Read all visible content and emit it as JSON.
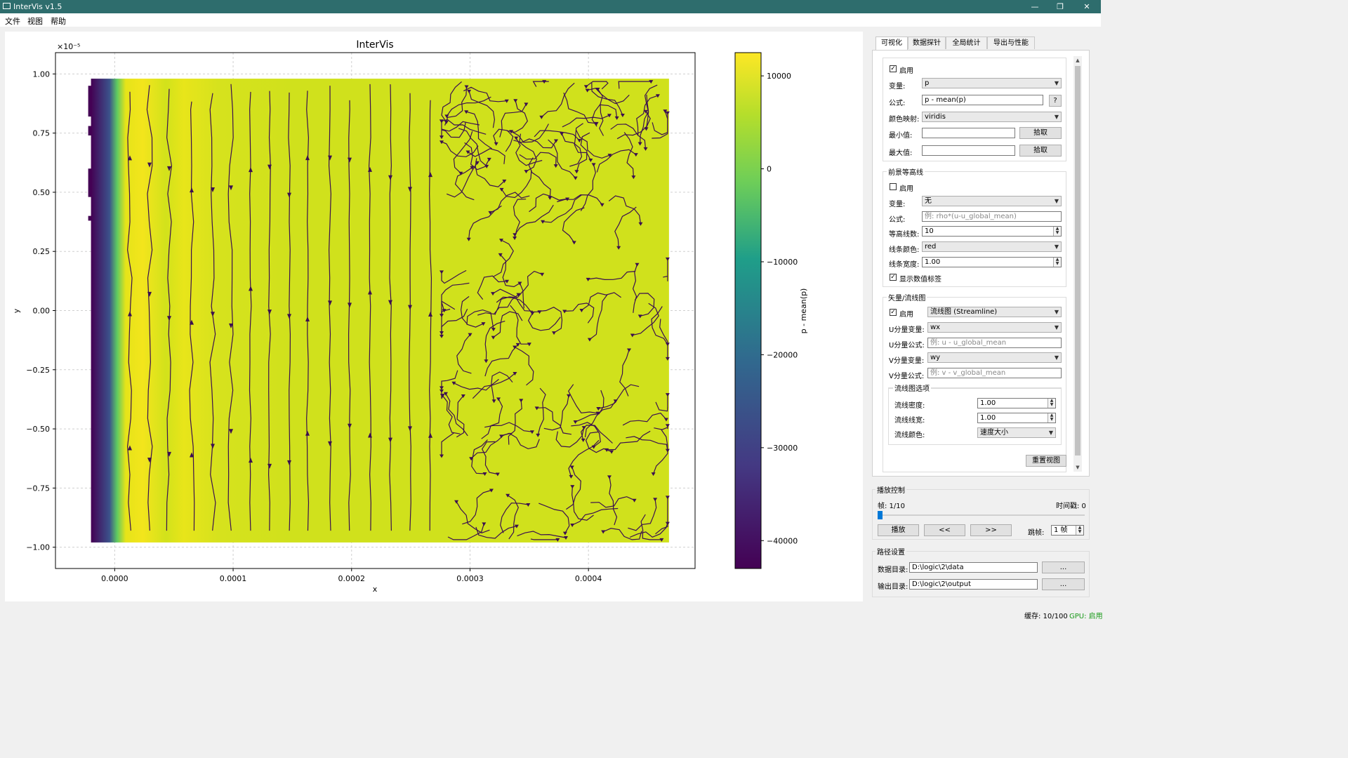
{
  "window": {
    "title": "InterVis v1.5",
    "minimize": "—",
    "restore": "❐",
    "close": "✕"
  },
  "menu": [
    "文件",
    "视图",
    "帮助"
  ],
  "plot": {
    "title": "InterVis",
    "xlabel": "x",
    "ylabel": "y",
    "y_exponent": "×10⁻⁵",
    "x_ticks": [
      "0.0000",
      "0.0001",
      "0.0002",
      "0.0003",
      "0.0004"
    ],
    "y_ticks": [
      "1.00",
      "0.75",
      "0.50",
      "0.25",
      "0.00",
      "−0.25",
      "−0.50",
      "−0.75",
      "−1.00"
    ],
    "colorbar_label": "p - mean(p)",
    "colorbar_ticks": [
      "10000",
      "0",
      "−10000",
      "−20000",
      "−30000",
      "−40000"
    ]
  },
  "chart_data": {
    "type": "heatmap",
    "title": "InterVis",
    "xlabel": "x",
    "ylabel": "y",
    "y_scale_factor": "1e-5",
    "xlim": [
      -5e-05,
      0.00049
    ],
    "ylim": [
      -1.09,
      1.09
    ],
    "x_ticks": [
      0.0,
      0.0001,
      0.0002,
      0.0003,
      0.0004
    ],
    "y_ticks": [
      1.0,
      0.75,
      0.5,
      0.25,
      0.0,
      -0.25,
      -0.5,
      -0.75,
      -1.0
    ],
    "colormap": "viridis",
    "colorbar": {
      "label": "p - mean(p)",
      "ticks": [
        10000,
        0,
        -10000,
        -20000,
        -30000,
        -40000
      ],
      "range": [
        -43000,
        12500
      ]
    },
    "field_extent": {
      "x": [
        -2e-05,
        0.000468
      ],
      "y": [
        -0.98,
        0.98
      ]
    },
    "low_region_x": [
      -2e-05,
      0.0
    ],
    "streamlines": true,
    "grid": true
  },
  "tabs": {
    "items": [
      "可视化",
      "数据探针",
      "全局统计",
      "导出与性能"
    ],
    "active": 0
  },
  "viz": {
    "bg_enable": "启用",
    "var_label": "变量:",
    "var_value": "p",
    "formula_label": "公式:",
    "formula_value": "p - mean(p)",
    "help_btn": "?",
    "cmap_label": "颜色映射:",
    "cmap_value": "viridis",
    "min_label": "最小值:",
    "max_label": "最大值:",
    "pick_btn": "拾取"
  },
  "contour": {
    "group": "前景等高线",
    "enable": "启用",
    "var_label": "变量:",
    "var_value": "无",
    "formula_label": "公式:",
    "formula_placeholder": "例: rho*(u-u_global_mean)",
    "levels_label": "等高线数:",
    "levels_value": "10",
    "color_label": "线条颜色:",
    "color_value": "red",
    "width_label": "线条宽度:",
    "width_value": "1.00",
    "show_labels": "显示数值标签"
  },
  "vector": {
    "group": "矢量/流线图",
    "enable": "启用",
    "mode_value": "流线图 (Streamline)",
    "u_var_label": "U分量变量:",
    "u_var_value": "wx",
    "u_formula_label": "U分量公式:",
    "u_formula_placeholder": "例: u - u_global_mean",
    "v_var_label": "V分量变量:",
    "v_var_value": "wy",
    "v_formula_label": "V分量公式:",
    "v_formula_placeholder": "例: v - v_global_mean",
    "stream_group": "流线图选项",
    "density_label": "流线密度:",
    "density_value": "1.00",
    "width_label": "流线线宽:",
    "width_value": "1.00",
    "color_label": "流线颜色:",
    "color_value": "速度大小",
    "reset_btn": "重置视图"
  },
  "playback": {
    "group": "播放控制",
    "frame": "帧: 1/10",
    "timestep": "时间戳: 0",
    "progress": 0.0,
    "play": "播放",
    "prev": "<<",
    "next": ">>",
    "skip_label": "跳帧:",
    "skip_value": "1 帧"
  },
  "paths": {
    "group": "路径设置",
    "data_label": "数据目录:",
    "data_value": "D:\\logic\\2\\data",
    "out_label": "输出目录:",
    "out_value": "D:\\logic\\2\\output",
    "browse": "..."
  },
  "status": {
    "cache": "缓存: 10/100",
    "gpu": "GPU: 启用",
    "gpu_color": "#1a9a1a"
  }
}
